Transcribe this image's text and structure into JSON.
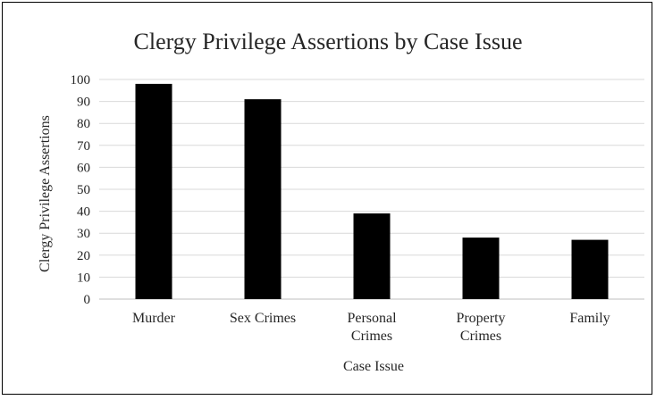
{
  "chart_data": {
    "type": "bar",
    "title": "Clergy Privilege Assertions by Case Issue",
    "xlabel": "Case Issue",
    "ylabel": "Clergy Privilege Assertions",
    "categories": [
      [
        "Murder"
      ],
      [
        "Sex Crimes"
      ],
      [
        "Personal",
        "Crimes"
      ],
      [
        "Property",
        "Crimes"
      ],
      [
        "Family"
      ]
    ],
    "values": [
      98,
      91,
      39,
      28,
      27
    ],
    "ylim": [
      0,
      100
    ],
    "yticks": [
      "0",
      "10",
      "20",
      "30",
      "40",
      "50",
      "60",
      "70",
      "80",
      "90",
      "100"
    ],
    "grid": true,
    "legend": "none",
    "colors": {
      "bar": "#000000",
      "grid": "#d9d9d9",
      "text": "#262626"
    }
  }
}
